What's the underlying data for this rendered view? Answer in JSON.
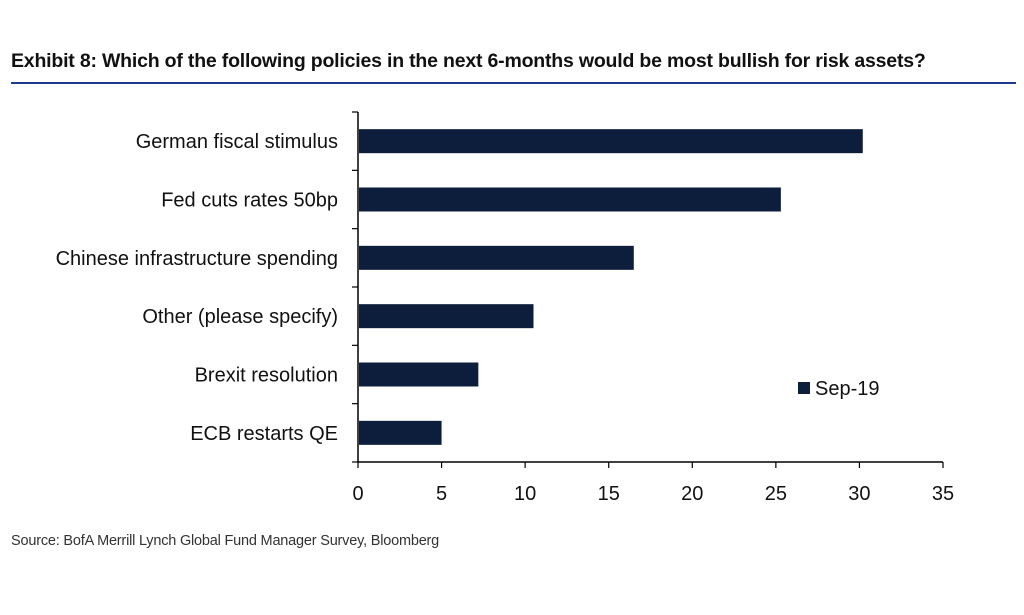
{
  "title": "Exhibit 8: Which of the  following policies in the next 6-months would be most bullish for risk assets?",
  "source": "Source:  BofA Merrill Lynch Global Fund Manager Survey, Bloomberg",
  "colors": {
    "bar": "#0d1e3d",
    "rule": "#1f3b8c",
    "axis": "#000000",
    "text": "#111111"
  },
  "chart_data": {
    "type": "bar",
    "orientation": "horizontal",
    "categories": [
      "German fiscal stimulus",
      "Fed cuts rates 50bp",
      "Chinese infrastructure spending",
      "Other (please specify)",
      "Brexit resolution",
      "ECB restarts QE"
    ],
    "series": [
      {
        "name": "Sep-19",
        "values": [
          30.2,
          25.3,
          16.5,
          10.5,
          7.2,
          5.0
        ]
      }
    ],
    "xlim": [
      0,
      35
    ],
    "xticks": [
      "0",
      "5",
      "10",
      "15",
      "20",
      "25",
      "30",
      "35"
    ],
    "grid": false,
    "legend_position": "lower-right"
  }
}
